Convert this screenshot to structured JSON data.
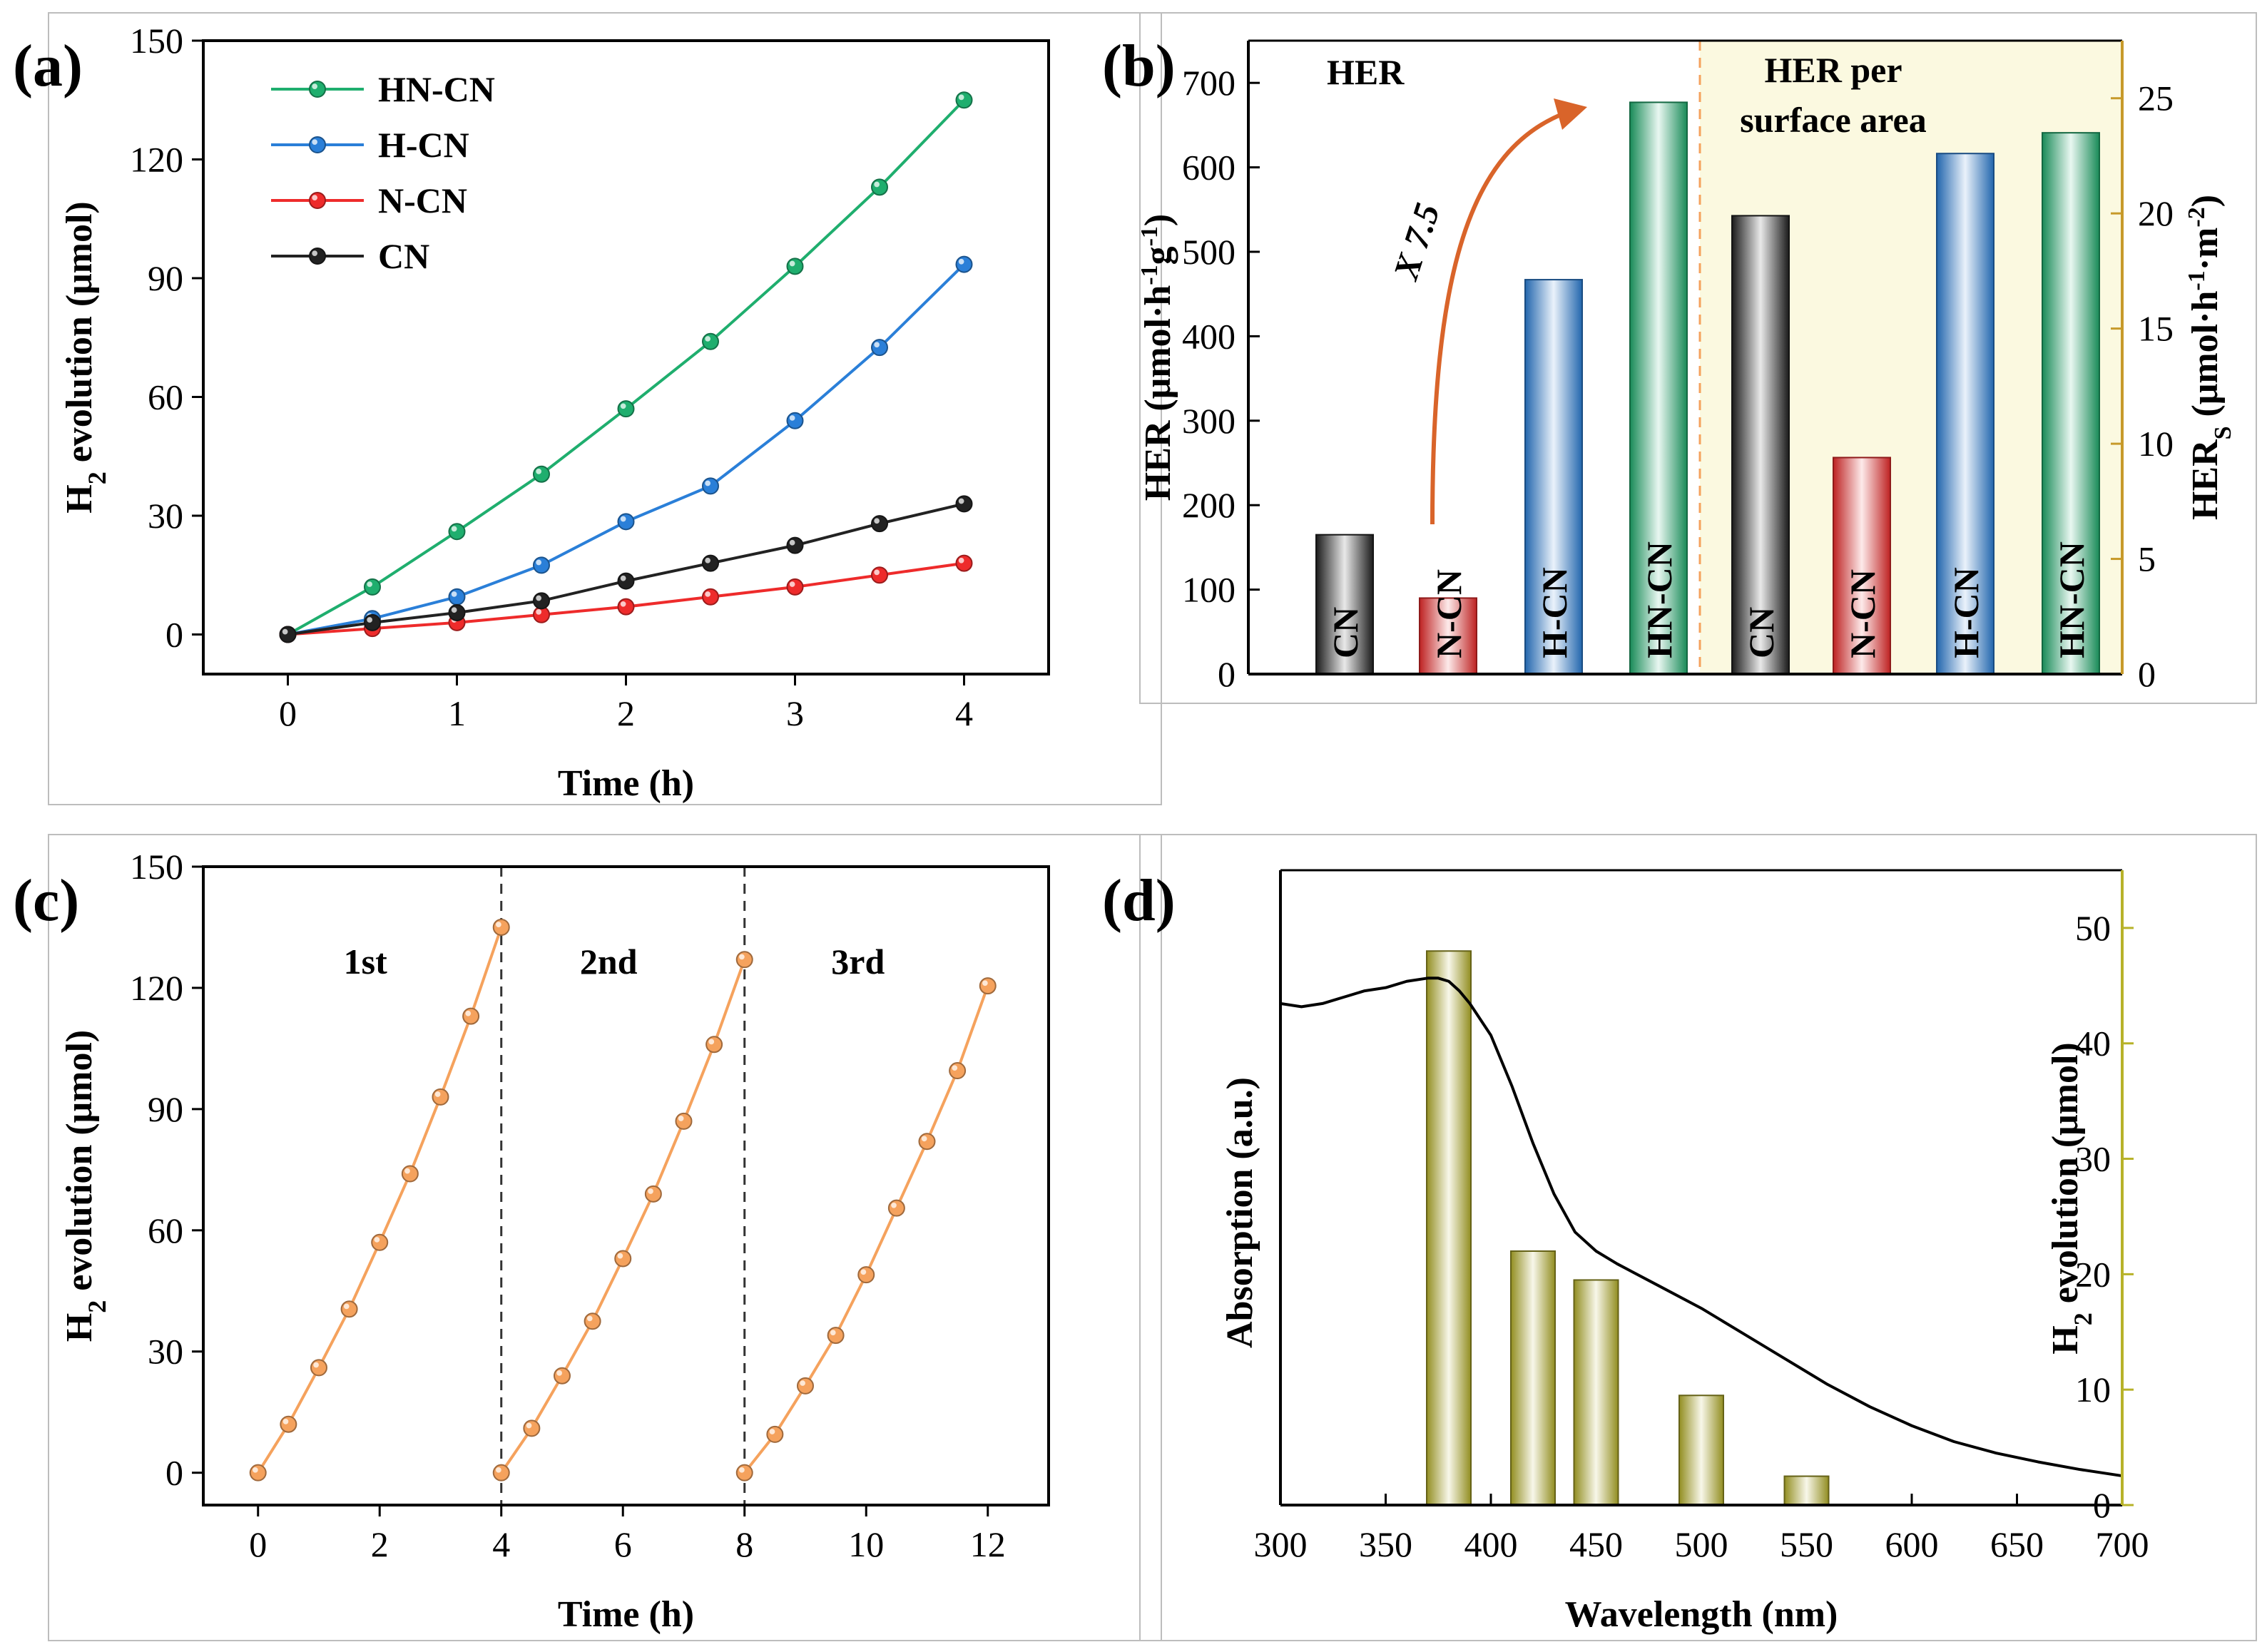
{
  "figure_labels": [
    "(a)",
    "(b)",
    "(c)",
    "(d)"
  ],
  "colors": {
    "hn_cn": "#1fae6e",
    "h_cn": "#2a7fd8",
    "n_cn": "#ee2b2b",
    "cn": "#222222",
    "cycle": "#f5a25d",
    "arrow": "#d9642a",
    "her_s_axis": "#c79a2a",
    "panel_d_axis": "#b7b229",
    "panel_b_shade": "#fbf9e0"
  },
  "chart_data": [
    {
      "panel": "(a)",
      "type": "line",
      "xlabel": "Time (h)",
      "ylabel": "H2 evolution (μmol)",
      "ylabel_parts": {
        "pre": "H",
        "sub": "2",
        "post": " evolution (μmol)"
      },
      "xlim": [
        -0.5,
        4.5
      ],
      "ylim": [
        -10,
        150
      ],
      "xticks": [
        0,
        1,
        2,
        3,
        4
      ],
      "yticks": [
        0,
        30,
        60,
        90,
        120,
        150
      ],
      "x": [
        0,
        0.5,
        1,
        1.5,
        2,
        2.5,
        3,
        3.5,
        4
      ],
      "legend_position": "top-left",
      "series": [
        {
          "name": "HN-CN",
          "color_key": "hn_cn",
          "values": [
            0,
            12,
            26,
            40.5,
            57,
            74,
            93,
            113,
            135
          ]
        },
        {
          "name": "H-CN",
          "color_key": "h_cn",
          "values": [
            0,
            4,
            9.5,
            17.5,
            28.5,
            37.5,
            54,
            72.5,
            93.5
          ]
        },
        {
          "name": "N-CN",
          "color_key": "n_cn",
          "values": [
            0,
            1.5,
            3,
            5,
            7,
            9.5,
            12,
            15,
            18
          ]
        },
        {
          "name": "CN",
          "color_key": "cn",
          "values": [
            0,
            3,
            5.5,
            8.5,
            13.5,
            18,
            22.5,
            28,
            33
          ]
        }
      ]
    },
    {
      "panel": "(b)",
      "type": "bar",
      "ylabel_left": "HER (μmol·h-1g-1)",
      "ylabel_left_parts": {
        "a": "HER (μmol·h",
        "b": "-1",
        "c": "g",
        "d": "-1",
        "e": ")"
      },
      "ylabel_right": "HERS (μmol·h-1·m-2)",
      "ylabel_right_parts": {
        "a": "HER",
        "b": "S",
        "c": " (μmol·h",
        "d": "-1",
        "e": "·m",
        "f": "-2",
        "g": ")"
      },
      "ylim_left": [
        0,
        750
      ],
      "yticks_left": [
        0,
        100,
        200,
        300,
        400,
        500,
        600,
        700
      ],
      "ylim_right": [
        0,
        27.5
      ],
      "yticks_right": [
        0,
        5,
        10,
        15,
        20,
        25
      ],
      "section_left_label": "HER",
      "section_right_label": [
        "HER per",
        "surface area"
      ],
      "annotation": "X 7.5",
      "groups": [
        {
          "section": "HER",
          "axis": "left",
          "bars": [
            {
              "label": "CN",
              "value": 165,
              "color_key": "cn"
            },
            {
              "label": "N-CN",
              "value": 90,
              "color_key": "n_cn"
            },
            {
              "label": "H-CN",
              "value": 467,
              "color_key": "h_cn"
            },
            {
              "label": "HN-CN",
              "value": 677,
              "color_key": "hn_cn"
            }
          ]
        },
        {
          "section": "HER per surface area",
          "axis": "right",
          "bars": [
            {
              "label": "CN",
              "value": 19.9,
              "color_key": "cn"
            },
            {
              "label": "N-CN",
              "value": 9.4,
              "color_key": "n_cn"
            },
            {
              "label": "H-CN",
              "value": 22.6,
              "color_key": "h_cn"
            },
            {
              "label": "HN-CN",
              "value": 23.5,
              "color_key": "hn_cn"
            }
          ]
        }
      ]
    },
    {
      "panel": "(c)",
      "type": "line",
      "xlabel": "Time (h)",
      "ylabel": "H2 evolution (μmol)",
      "ylabel_parts": {
        "pre": "H",
        "sub": "2",
        "post": " evolution (μmol)"
      },
      "xlim": [
        -0.9,
        13
      ],
      "ylim": [
        -8,
        150
      ],
      "xticks": [
        0,
        2,
        4,
        6,
        8,
        10,
        12
      ],
      "yticks": [
        0,
        30,
        60,
        90,
        120,
        150
      ],
      "cycle_dividers": [
        4,
        8
      ],
      "cycle_labels": [
        "1st",
        "2nd",
        "3rd"
      ],
      "series": [
        {
          "name": "1st",
          "color_key": "cycle",
          "x": [
            0,
            0.5,
            1,
            1.5,
            2,
            2.5,
            3,
            3.5,
            4
          ],
          "values": [
            0,
            12,
            26,
            40.5,
            57,
            74,
            93,
            113,
            135
          ]
        },
        {
          "name": "2nd",
          "color_key": "cycle",
          "x": [
            4,
            4.5,
            5,
            5.5,
            6,
            6.5,
            7,
            7.5,
            8
          ],
          "values": [
            0,
            11,
            24,
            37.5,
            53,
            69,
            87,
            106,
            127
          ]
        },
        {
          "name": "3rd",
          "color_key": "cycle",
          "x": [
            8,
            8.5,
            9,
            9.5,
            10,
            10.5,
            11,
            11.5,
            12
          ],
          "values": [
            0,
            9.5,
            21.5,
            34,
            49,
            65.5,
            82,
            99.5,
            120.5
          ]
        }
      ]
    },
    {
      "panel": "(d)",
      "type": "line+bar",
      "xlabel": "Wavelength (nm)",
      "ylabel_left": "Absorption (a.u.)",
      "ylabel_right": "H2 evolution (μmol)",
      "ylabel_right_parts": {
        "pre": "H",
        "sub": "2",
        "post": " evolution (μmol)"
      },
      "xlim": [
        300,
        700
      ],
      "xticks": [
        300,
        350,
        400,
        450,
        500,
        550,
        600,
        650,
        700
      ],
      "ylim_right": [
        0,
        55
      ],
      "yticks_right": [
        0,
        10,
        20,
        30,
        40,
        50
      ],
      "ylim_left": [
        0,
        1
      ],
      "bars": [
        {
          "wavelength": 380,
          "value": 48
        },
        {
          "wavelength": 420,
          "value": 22
        },
        {
          "wavelength": 450,
          "value": 19.5
        },
        {
          "wavelength": 500,
          "value": 9.5
        },
        {
          "wavelength": 550,
          "value": 2.5
        }
      ],
      "absorption_curve": {
        "x": [
          300,
          310,
          320,
          330,
          340,
          350,
          360,
          370,
          375,
          380,
          385,
          390,
          400,
          410,
          420,
          430,
          440,
          450,
          460,
          480,
          500,
          520,
          540,
          560,
          580,
          600,
          620,
          640,
          660,
          680,
          700
        ],
        "values": [
          0.79,
          0.785,
          0.79,
          0.8,
          0.81,
          0.815,
          0.825,
          0.83,
          0.83,
          0.825,
          0.81,
          0.79,
          0.74,
          0.66,
          0.57,
          0.49,
          0.43,
          0.4,
          0.38,
          0.345,
          0.31,
          0.27,
          0.23,
          0.19,
          0.155,
          0.125,
          0.1,
          0.082,
          0.068,
          0.056,
          0.046
        ]
      }
    }
  ]
}
